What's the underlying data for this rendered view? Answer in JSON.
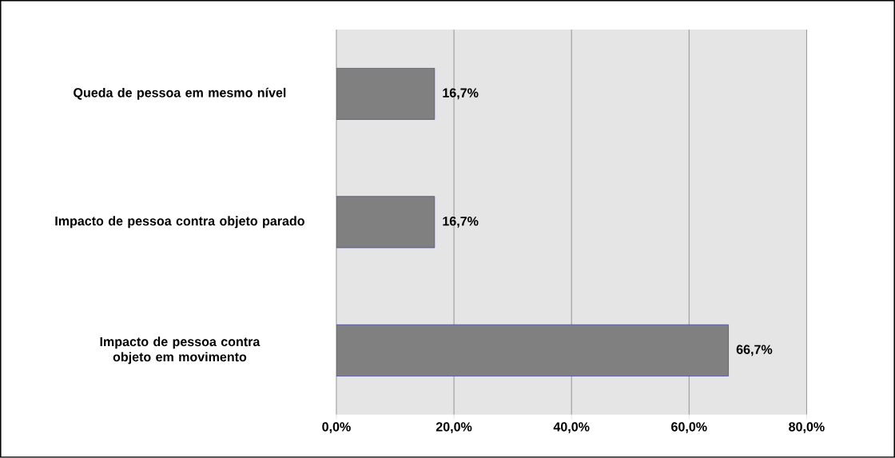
{
  "chart_data": {
    "type": "bar",
    "orientation": "horizontal",
    "categories": [
      "Queda de pessoa em mesmo nível",
      "Impacto de pessoa contra objeto parado",
      "Impacto de pessoa contra objeto em movimento"
    ],
    "values": [
      16.7,
      16.7,
      66.7
    ],
    "color": "#808080",
    "value_labels": [
      "16,7%",
      "16,7%",
      "66,7%"
    ],
    "xlim": [
      0,
      80
    ],
    "xticks": [
      {
        "value": 0,
        "label": "0,0%"
      },
      {
        "value": 20,
        "label": "20,0%"
      },
      {
        "value": 40,
        "label": "40,0%"
      },
      {
        "value": 60,
        "label": "60,0%"
      },
      {
        "value": 80,
        "label": "80,0%"
      }
    ],
    "grid": "x"
  }
}
